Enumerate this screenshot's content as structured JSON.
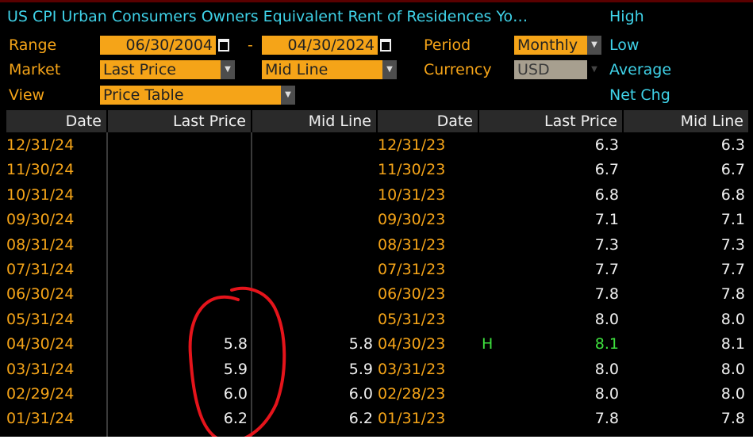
{
  "header": {
    "title": "US CPI Urban Consumers Owners Equivalent Rent of Residences Yo…",
    "range_label": "Range",
    "range_start": "06/30/2004",
    "range_sep": "-",
    "range_end": "04/30/2024",
    "period_label": "Period",
    "period_value": "Monthly",
    "market_label": "Market",
    "market_value_1": "Last Price",
    "market_value_2": "Mid Line",
    "currency_label": "Currency",
    "currency_value": "USD",
    "view_label": "View",
    "view_value": "Price Table"
  },
  "stats": {
    "high": "High",
    "low": "Low",
    "average": "Average",
    "net_chg": "Net Chg"
  },
  "columns": [
    "Date",
    "Last Price",
    "Mid Line",
    "Date",
    "Last Price",
    "Mid Line"
  ],
  "rows": [
    {
      "d1": "12/31/24",
      "lp1": "",
      "ml1": "",
      "d2": "12/31/23",
      "mark": "",
      "lp2": "6.3",
      "ml2": "6.3"
    },
    {
      "d1": "11/30/24",
      "lp1": "",
      "ml1": "",
      "d2": "11/30/23",
      "mark": "",
      "lp2": "6.7",
      "ml2": "6.7"
    },
    {
      "d1": "10/31/24",
      "lp1": "",
      "ml1": "",
      "d2": "10/31/23",
      "mark": "",
      "lp2": "6.8",
      "ml2": "6.8"
    },
    {
      "d1": "09/30/24",
      "lp1": "",
      "ml1": "",
      "d2": "09/30/23",
      "mark": "",
      "lp2": "7.1",
      "ml2": "7.1"
    },
    {
      "d1": "08/31/24",
      "lp1": "",
      "ml1": "",
      "d2": "08/31/23",
      "mark": "",
      "lp2": "7.3",
      "ml2": "7.3"
    },
    {
      "d1": "07/31/24",
      "lp1": "",
      "ml1": "",
      "d2": "07/31/23",
      "mark": "",
      "lp2": "7.7",
      "ml2": "7.7"
    },
    {
      "d1": "06/30/24",
      "lp1": "",
      "ml1": "",
      "d2": "06/30/23",
      "mark": "",
      "lp2": "7.8",
      "ml2": "7.8"
    },
    {
      "d1": "05/31/24",
      "lp1": "",
      "ml1": "",
      "d2": "05/31/23",
      "mark": "",
      "lp2": "8.0",
      "ml2": "8.0"
    },
    {
      "d1": "04/30/24",
      "lp1": "5.8",
      "ml1": "5.8",
      "d2": "04/30/23",
      "mark": "H",
      "lp2": "8.1",
      "ml2": "8.1",
      "highlight": true
    },
    {
      "d1": "03/31/24",
      "lp1": "5.9",
      "ml1": "5.9",
      "d2": "03/31/23",
      "mark": "",
      "lp2": "8.0",
      "ml2": "8.0"
    },
    {
      "d1": "02/29/24",
      "lp1": "6.0",
      "ml1": "6.0",
      "d2": "02/28/23",
      "mark": "",
      "lp2": "8.0",
      "ml2": "8.0"
    },
    {
      "d1": "01/31/24",
      "lp1": "6.2",
      "ml1": "6.2",
      "d2": "01/31/23",
      "mark": "",
      "lp2": "7.8",
      "ml2": "7.8"
    }
  ],
  "annotation": {
    "shape": "hand-drawn red circle",
    "color": "#e5141b"
  },
  "colors": {
    "label": "#3fd2e8",
    "field": "#f5a418",
    "date": "#f5a418",
    "high": "#3ee03e",
    "background": "#000000"
  }
}
